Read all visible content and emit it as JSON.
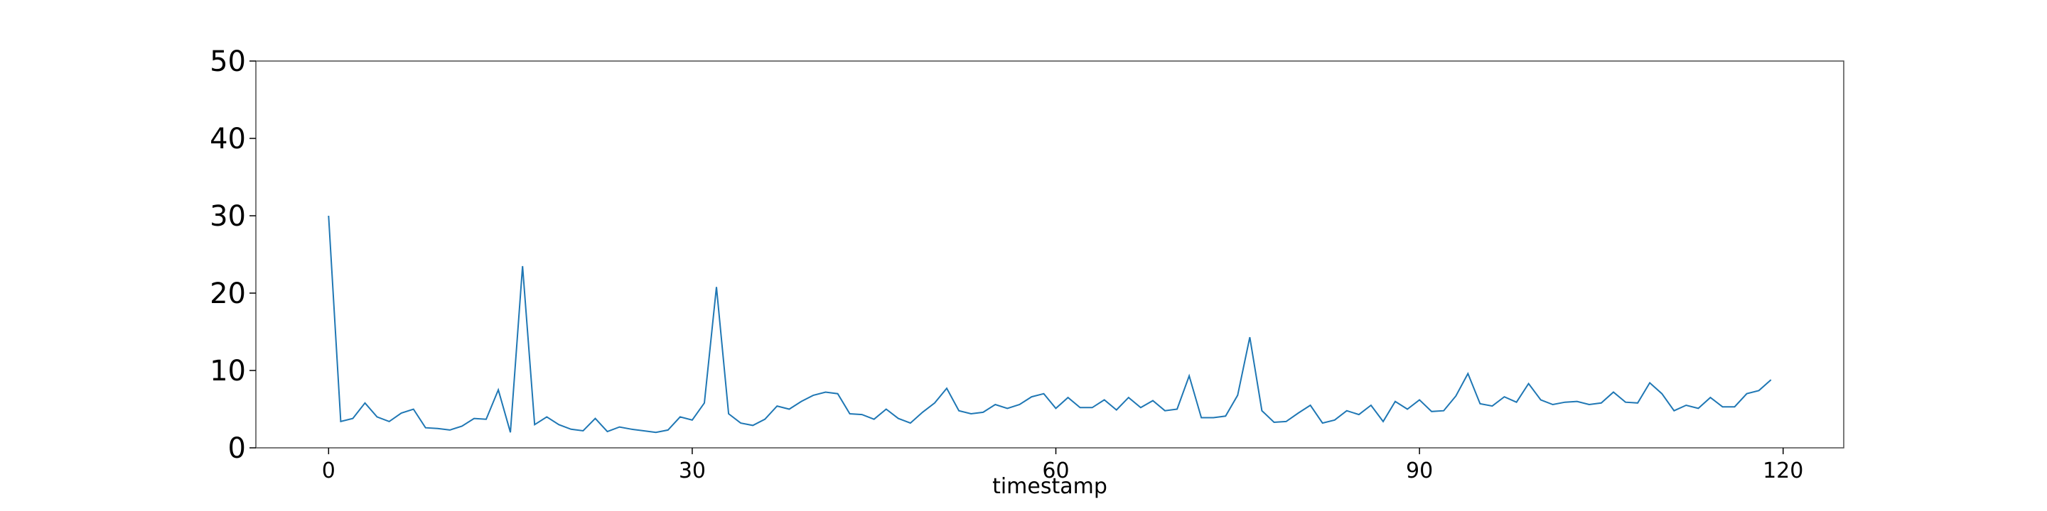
{
  "chart_data": {
    "type": "line",
    "xlabel": "timestamp",
    "ylabel": "",
    "xlim": [
      -6,
      125
    ],
    "ylim": [
      0,
      50
    ],
    "xticks": [
      0,
      30,
      60,
      90,
      120
    ],
    "yticks": [
      0,
      10,
      20,
      30,
      40,
      50
    ],
    "grid": false,
    "legend": "none",
    "colors": {
      "line": "#1f77b4",
      "axes": "#000000",
      "background": "#ffffff"
    },
    "series": [
      {
        "x": [
          0,
          1,
          2,
          3,
          4,
          5,
          6,
          7,
          8,
          9,
          10,
          11,
          12,
          13,
          14,
          15,
          16,
          17,
          18,
          19,
          20,
          21,
          22,
          23,
          24,
          25,
          26,
          27,
          28,
          29,
          30,
          31,
          32,
          33,
          34,
          35,
          36,
          37,
          38,
          39,
          40,
          41,
          42,
          43,
          44,
          45,
          46,
          47,
          48,
          49,
          50,
          51,
          52,
          53,
          54,
          55,
          56,
          57,
          58,
          59,
          60,
          61,
          62,
          63,
          64,
          65,
          66,
          67,
          68,
          69,
          70,
          71,
          72,
          73,
          74,
          75,
          76,
          77,
          78,
          79,
          80,
          81,
          82,
          83,
          84,
          85,
          86,
          87,
          88,
          89,
          90,
          91,
          92,
          93,
          94,
          95,
          96,
          97,
          98,
          99,
          100,
          101,
          102,
          103,
          104,
          105,
          106,
          107,
          108,
          109,
          110,
          111,
          112,
          113,
          114,
          115,
          116,
          117,
          118,
          119
        ],
        "values": [
          30.0,
          3.4,
          3.8,
          5.8,
          4.0,
          3.4,
          4.5,
          5.0,
          2.6,
          2.5,
          2.3,
          2.8,
          3.8,
          3.7,
          7.5,
          2.0,
          23.5,
          3.0,
          4.0,
          3.0,
          2.4,
          2.2,
          3.8,
          2.1,
          2.7,
          2.4,
          2.2,
          2.0,
          2.3,
          4.0,
          3.6,
          5.8,
          20.8,
          4.4,
          3.2,
          2.9,
          3.7,
          5.4,
          5.0,
          6.0,
          6.8,
          7.2,
          7.0,
          4.4,
          4.3,
          3.7,
          5.0,
          3.8,
          3.2,
          4.6,
          5.8,
          7.7,
          4.8,
          4.4,
          4.6,
          5.6,
          5.1,
          5.6,
          6.6,
          7.0,
          5.1,
          6.5,
          5.2,
          5.2,
          6.2,
          4.9,
          6.5,
          5.2,
          6.1,
          4.8,
          5.0,
          9.3,
          3.9,
          3.9,
          4.1,
          6.8,
          14.3,
          4.8,
          3.3,
          3.4,
          4.5,
          5.5,
          3.2,
          3.6,
          4.8,
          4.3,
          5.5,
          3.4,
          6.0,
          5.0,
          6.2,
          4.7,
          4.8,
          6.7,
          9.6,
          5.7,
          5.4,
          6.6,
          5.9,
          8.3,
          6.2,
          5.6,
          5.9,
          6.0,
          5.6,
          5.8,
          7.2,
          5.9,
          5.8,
          8.4,
          7.0,
          4.8,
          5.5,
          5.1,
          6.5,
          5.3,
          5.3,
          7.0,
          7.4,
          8.8
        ]
      }
    ]
  }
}
